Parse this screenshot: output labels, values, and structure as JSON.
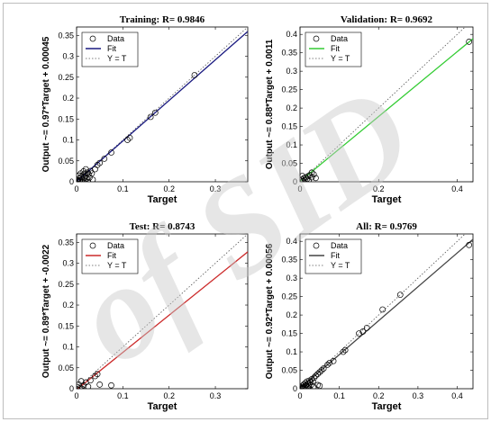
{
  "colors": {
    "training_fit": "#1a1a80",
    "validation_fit": "#33cc33",
    "test_fit": "#cc2a2a",
    "all_fit": "#444444"
  },
  "watermark": {
    "text": "of SID"
  },
  "chart_data": [
    {
      "type": "scatter",
      "title": "Training: R= 0.9846",
      "xlabel": "Target",
      "ylabel": "Output ~= 0.97*Target + 0.00045",
      "xlim": [
        0,
        0.37
      ],
      "ylim": [
        0,
        0.37
      ],
      "xticks": [
        0,
        0.1,
        0.2,
        0.3
      ],
      "xtick_labels": [
        "0",
        "0.1",
        "0.2",
        "0.3"
      ],
      "yticks": [
        0,
        0.05,
        0.1,
        0.15,
        0.2,
        0.25,
        0.3,
        0.35
      ],
      "ytick_labels": [
        "0",
        "0.05",
        "0.1",
        "0.15",
        "0.2",
        "0.25",
        "0.3",
        "0.35"
      ],
      "fit": {
        "slope": 0.97,
        "intercept": 0.00045,
        "color_key": "training_fit"
      },
      "legend": [
        "Data",
        "Fit",
        "Y = T"
      ],
      "legend_position": "top-left",
      "points": [
        [
          0.002,
          0.004
        ],
        [
          0.004,
          0.002
        ],
        [
          0.006,
          0.008
        ],
        [
          0.008,
          0.004
        ],
        [
          0.01,
          0.012
        ],
        [
          0.012,
          0.006
        ],
        [
          0.014,
          0.016
        ],
        [
          0.016,
          0.01
        ],
        [
          0.018,
          0.02
        ],
        [
          0.02,
          0.014
        ],
        [
          0.022,
          0.008
        ],
        [
          0.024,
          0.022
        ],
        [
          0.026,
          0.018
        ],
        [
          0.028,
          0.01
        ],
        [
          0.03,
          0.026
        ],
        [
          0.005,
          0.015
        ],
        [
          0.009,
          0.02
        ],
        [
          0.015,
          0.025
        ],
        [
          0.02,
          0.03
        ],
        [
          0.033,
          0.02
        ],
        [
          0.04,
          0.03
        ],
        [
          0.045,
          0.04
        ],
        [
          0.05,
          0.045
        ],
        [
          0.06,
          0.055
        ],
        [
          0.075,
          0.07
        ],
        [
          0.11,
          0.1
        ],
        [
          0.115,
          0.105
        ],
        [
          0.16,
          0.155
        ],
        [
          0.17,
          0.165
        ],
        [
          0.255,
          0.255
        ],
        [
          0.003,
          0.0
        ],
        [
          0.007,
          0.001
        ],
        [
          0.012,
          0.0
        ],
        [
          0.018,
          0.003
        ],
        [
          0.025,
          0.0
        ],
        [
          0.035,
          0.005
        ]
      ]
    },
    {
      "type": "scatter",
      "title": "Validation: R= 0.9692",
      "xlabel": "Target",
      "ylabel": "Output ~= 0.88*Target + 0.0011",
      "xlim": [
        0,
        0.44
      ],
      "ylim": [
        0,
        0.42
      ],
      "xticks": [
        0,
        0.2,
        0.4
      ],
      "xtick_labels": [
        "0",
        "0.2",
        "0.4"
      ],
      "yticks": [
        0,
        0.05,
        0.1,
        0.15,
        0.2,
        0.25,
        0.3,
        0.35,
        0.4
      ],
      "ytick_labels": [
        "0",
        "0.05",
        "0.1",
        "0.15",
        "0.2",
        "0.25",
        "0.3",
        "0.35",
        "0.4"
      ],
      "fit": {
        "slope": 0.88,
        "intercept": 0.0011,
        "color_key": "validation_fit"
      },
      "legend": [
        "Data",
        "Fit",
        "Y = T"
      ],
      "legend_position": "top-left",
      "points": [
        [
          0.002,
          0.003
        ],
        [
          0.005,
          0.006
        ],
        [
          0.008,
          0.002
        ],
        [
          0.01,
          0.01
        ],
        [
          0.012,
          0.005
        ],
        [
          0.015,
          0.012
        ],
        [
          0.018,
          0.008
        ],
        [
          0.02,
          0.015
        ],
        [
          0.022,
          0.004
        ],
        [
          0.025,
          0.018
        ],
        [
          0.03,
          0.012
        ],
        [
          0.035,
          0.02
        ],
        [
          0.04,
          0.01
        ],
        [
          0.006,
          0.016
        ],
        [
          0.03,
          0.025
        ],
        [
          0.43,
          0.38
        ]
      ]
    },
    {
      "type": "scatter",
      "title": "Test: R= 0.8743",
      "xlabel": "Target",
      "ylabel": "Output ~= 0.89*Target + -0.0022",
      "xlim": [
        0,
        0.37
      ],
      "ylim": [
        0,
        0.37
      ],
      "xticks": [
        0,
        0.1,
        0.2,
        0.3
      ],
      "xtick_labels": [
        "0",
        "0.1",
        "0.2",
        "0.3"
      ],
      "yticks": [
        0,
        0.05,
        0.1,
        0.15,
        0.2,
        0.25,
        0.3,
        0.35
      ],
      "ytick_labels": [
        "0",
        "0.05",
        "0.1",
        "0.15",
        "0.2",
        "0.25",
        "0.3",
        "0.35"
      ],
      "fit": {
        "slope": 0.89,
        "intercept": -0.0022,
        "color_key": "test_fit"
      },
      "legend": [
        "Data",
        "Fit",
        "Y = T"
      ],
      "legend_position": "top-left",
      "points": [
        [
          0.002,
          0.004
        ],
        [
          0.005,
          0.01
        ],
        [
          0.008,
          0.002
        ],
        [
          0.01,
          0.018
        ],
        [
          0.015,
          0.008
        ],
        [
          0.02,
          0.015
        ],
        [
          0.025,
          0.005
        ],
        [
          0.03,
          0.02
        ],
        [
          0.04,
          0.03
        ],
        [
          0.045,
          0.035
        ],
        [
          0.05,
          0.01
        ],
        [
          0.012,
          0.0
        ],
        [
          0.075,
          0.008
        ]
      ]
    },
    {
      "type": "scatter",
      "title": "All: R= 0.9769",
      "xlabel": "Target",
      "ylabel": "Output ~= 0.92*Target + 0.00056",
      "xlim": [
        0,
        0.44
      ],
      "ylim": [
        0,
        0.42
      ],
      "xticks": [
        0,
        0.1,
        0.2,
        0.3,
        0.4
      ],
      "xtick_labels": [
        "0",
        "0.1",
        "0.2",
        "0.3",
        "0.4"
      ],
      "yticks": [
        0,
        0.05,
        0.1,
        0.15,
        0.2,
        0.25,
        0.3,
        0.35,
        0.4
      ],
      "ytick_labels": [
        "0",
        "0.05",
        "0.1",
        "0.15",
        "0.2",
        "0.25",
        "0.3",
        "0.35",
        "0.4"
      ],
      "fit": {
        "slope": 0.92,
        "intercept": 0.00056,
        "color_key": "all_fit"
      },
      "legend": [
        "Data",
        "Fit",
        "Y = T"
      ],
      "legend_position": "top-left",
      "points": [
        [
          0.002,
          0.004
        ],
        [
          0.004,
          0.002
        ],
        [
          0.006,
          0.008
        ],
        [
          0.008,
          0.004
        ],
        [
          0.01,
          0.012
        ],
        [
          0.012,
          0.006
        ],
        [
          0.014,
          0.016
        ],
        [
          0.016,
          0.01
        ],
        [
          0.018,
          0.02
        ],
        [
          0.02,
          0.014
        ],
        [
          0.022,
          0.008
        ],
        [
          0.024,
          0.022
        ],
        [
          0.026,
          0.018
        ],
        [
          0.028,
          0.01
        ],
        [
          0.03,
          0.026
        ],
        [
          0.033,
          0.02
        ],
        [
          0.036,
          0.03
        ],
        [
          0.04,
          0.035
        ],
        [
          0.045,
          0.04
        ],
        [
          0.05,
          0.045
        ],
        [
          0.055,
          0.05
        ],
        [
          0.06,
          0.055
        ],
        [
          0.07,
          0.065
        ],
        [
          0.075,
          0.07
        ],
        [
          0.085,
          0.075
        ],
        [
          0.11,
          0.1
        ],
        [
          0.115,
          0.105
        ],
        [
          0.15,
          0.15
        ],
        [
          0.16,
          0.155
        ],
        [
          0.17,
          0.165
        ],
        [
          0.21,
          0.215
        ],
        [
          0.255,
          0.255
        ],
        [
          0.43,
          0.39
        ],
        [
          0.003,
          0.0
        ],
        [
          0.008,
          0.001
        ],
        [
          0.015,
          0.0
        ],
        [
          0.02,
          0.003
        ],
        [
          0.025,
          0.0
        ],
        [
          0.035,
          0.005
        ],
        [
          0.045,
          0.01
        ],
        [
          0.05,
          0.008
        ]
      ]
    }
  ]
}
